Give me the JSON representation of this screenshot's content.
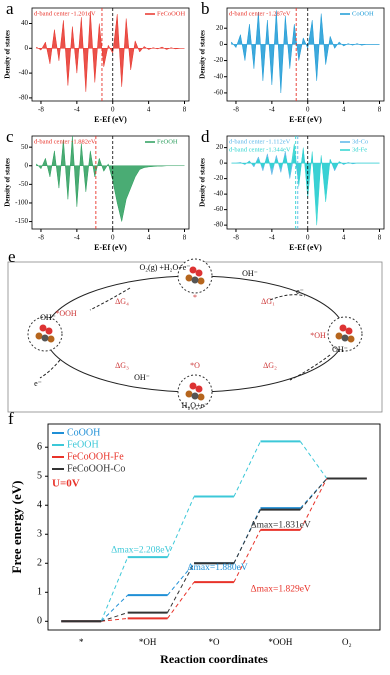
{
  "chart_data": [
    {
      "type": "dos",
      "panel": "a",
      "xlabel": "E-Ef (eV)",
      "ylabel": "Density of states",
      "xlim": [
        -9,
        8.5
      ],
      "xticks": [
        -8,
        -4,
        0,
        4,
        8
      ],
      "ylim": [
        -85,
        65
      ],
      "yticks": [
        -80,
        -40,
        0,
        40
      ],
      "x": [
        -8.5,
        -8,
        -7.5,
        -7,
        -6.5,
        -6,
        -5.5,
        -5,
        -4.5,
        -4,
        -3.5,
        -3,
        -2.5,
        -2,
        -1.5,
        -1,
        -0.5,
        0,
        0.5,
        1,
        1.5,
        2,
        2.5,
        3,
        3.5,
        4,
        4.5,
        5,
        5.5,
        6,
        6.5,
        7,
        7.5,
        8
      ],
      "series": [
        {
          "name": "FeCoOOH",
          "color": "#e8332a",
          "values": [
            2,
            -3,
            10,
            -25,
            30,
            -20,
            45,
            -60,
            35,
            -40,
            50,
            -70,
            60,
            -55,
            40,
            -30,
            5,
            -8,
            55,
            -62,
            48,
            -35,
            12,
            -6,
            3,
            -2,
            1,
            -1,
            2,
            -2,
            1,
            -1,
            0,
            0
          ]
        }
      ],
      "dband": [
        {
          "value": -1.201,
          "label": "d-band center -1.201eV",
          "color": "#e8332a"
        }
      ]
    },
    {
      "type": "dos",
      "panel": "b",
      "xlabel": "E-Ef (eV)",
      "ylabel": "Density of states",
      "xlim": [
        -9,
        8.5
      ],
      "xticks": [
        -8,
        -4,
        0,
        4,
        8
      ],
      "ylim": [
        -70,
        45
      ],
      "yticks": [
        -60,
        -40,
        -20,
        0,
        20
      ],
      "x": [
        -8.5,
        -8,
        -7.5,
        -7,
        -6.5,
        -6,
        -5.5,
        -5,
        -4.5,
        -4,
        -3.5,
        -3,
        -2.5,
        -2,
        -1.5,
        -1,
        -0.5,
        0,
        0.5,
        1,
        1.5,
        2,
        2.5,
        3,
        3.5,
        4,
        4.5,
        5,
        5.5,
        6,
        6.5,
        7,
        7.5,
        8
      ],
      "series": [
        {
          "name": "CoOOH",
          "color": "#1b9ad6",
          "values": [
            3,
            -4,
            12,
            -20,
            25,
            -30,
            40,
            -45,
            30,
            -50,
            42,
            -60,
            35,
            -30,
            25,
            -20,
            8,
            -5,
            30,
            -45,
            38,
            -25,
            10,
            -5,
            3,
            -2,
            1,
            -1,
            1,
            -1,
            0,
            0,
            0,
            0
          ]
        }
      ],
      "dband": [
        {
          "value": -1.287,
          "label": "d-band center -1.287eV",
          "color": "#e8332a"
        }
      ]
    },
    {
      "type": "dos",
      "panel": "c",
      "xlabel": "E-Ef (eV)",
      "ylabel": "Density of states",
      "xlim": [
        -9,
        8.5
      ],
      "xticks": [
        -8,
        -4,
        0,
        4,
        8
      ],
      "ylim": [
        -170,
        80
      ],
      "yticks": [
        -150,
        -100,
        -50,
        0,
        50
      ],
      "x": [
        -8.5,
        -8,
        -7.5,
        -7,
        -6.5,
        -6,
        -5.5,
        -5,
        -4.5,
        -4,
        -3.5,
        -3,
        -2.5,
        -2,
        -1.5,
        -1,
        -0.5,
        0,
        0.5,
        1,
        1.5,
        2,
        2.5,
        3,
        3.5,
        4,
        4.5,
        5,
        5.5,
        6,
        6.5,
        7,
        7.5,
        8
      ],
      "series": [
        {
          "name": "FeOOH",
          "color": "#2a9d5c",
          "values": [
            5,
            -8,
            20,
            -30,
            40,
            -60,
            70,
            -90,
            80,
            -110,
            60,
            -70,
            40,
            -30,
            20,
            -15,
            5,
            -40,
            -100,
            -150,
            -90,
            -60,
            -30,
            -10,
            -5,
            -3,
            -2,
            -1,
            -1,
            0,
            0,
            0,
            0,
            0
          ]
        }
      ],
      "dband": [
        {
          "value": -1.882,
          "label": "d-band center -1.882eV",
          "color": "#e8332a"
        }
      ]
    },
    {
      "type": "dos",
      "panel": "d",
      "xlabel": "E-Ef (eV)",
      "ylabel": "Density of states",
      "xlim": [
        -9,
        8.5
      ],
      "xticks": [
        -8,
        -4,
        0,
        4,
        8
      ],
      "ylim": [
        -85,
        35
      ],
      "yticks": [
        -80,
        -60,
        -40,
        -20,
        0,
        20
      ],
      "x": [
        -8.5,
        -8,
        -7.5,
        -7,
        -6.5,
        -6,
        -5.5,
        -5,
        -4.5,
        -4,
        -3.5,
        -3,
        -2.5,
        -2,
        -1.5,
        -1,
        -0.5,
        0,
        0.5,
        1,
        1.5,
        2,
        2.5,
        3,
        3.5,
        4,
        4.5,
        5,
        5.5,
        6,
        6.5,
        7,
        7.5,
        8
      ],
      "series": [
        {
          "name": "3d-Co",
          "color": "#5bb6e8",
          "values": [
            0,
            0,
            1,
            -2,
            3,
            -5,
            8,
            -10,
            12,
            -15,
            10,
            -12,
            15,
            -20,
            12,
            -25,
            18,
            -30,
            10,
            -60,
            8,
            -40,
            5,
            -10,
            2,
            -2,
            1,
            -1,
            0,
            0,
            0,
            0,
            0,
            0
          ]
        },
        {
          "name": "3d-Fe",
          "color": "#2fd4d0",
          "values": [
            0,
            0,
            0,
            -1,
            2,
            -3,
            5,
            -6,
            8,
            -8,
            6,
            -7,
            10,
            -15,
            25,
            -30,
            20,
            -45,
            15,
            -80,
            10,
            -50,
            5,
            -8,
            2,
            -1,
            0,
            0,
            0,
            0,
            0,
            0,
            0,
            0
          ]
        }
      ],
      "dband": [
        {
          "value": -1.112,
          "label": "d-band center -1.112eV",
          "color": "#5bb6e8"
        },
        {
          "value": -1.344,
          "label": "d-band center -1.344eV",
          "color": "#2fd4d0"
        }
      ]
    },
    {
      "type": "step",
      "panel": "f",
      "xlabel": "Reaction coordinates",
      "ylabel": "Free energy (eV)",
      "categories": [
        "*",
        "*OH",
        "*O",
        "*OOH",
        "O₂"
      ],
      "ylim": [
        -0.3,
        6.8
      ],
      "yticks": [
        0,
        1,
        2,
        3,
        4,
        5,
        6
      ],
      "series": [
        {
          "name": "CoOOH",
          "color": "#1f8fd6",
          "values": [
            0,
            0.9,
            2.0,
            3.9,
            4.92
          ]
        },
        {
          "name": "FeOOH",
          "color": "#3cc8d8",
          "values": [
            0,
            2.21,
            4.3,
            6.2,
            4.92
          ]
        },
        {
          "name": "FeCoOOH-Fe",
          "color": "#e8332a",
          "values": [
            0,
            0.1,
            1.35,
            3.15,
            4.92
          ]
        },
        {
          "name": "FeCoOOH-Co",
          "color": "#333333",
          "values": [
            0,
            0.3,
            2.0,
            3.85,
            4.92
          ]
        }
      ],
      "annotations": [
        {
          "text": "U=0V",
          "color": "#e8332a"
        },
        {
          "text": "Δmax=2.208eV",
          "color": "#3cc8d8"
        },
        {
          "text": "Δmax=1.880eV",
          "color": "#1f8fd6"
        },
        {
          "text": "Δmax=1.831eV",
          "color": "#333333"
        },
        {
          "text": "Δmax=1.829eV",
          "color": "#e8332a"
        }
      ]
    }
  ],
  "diagram": {
    "panel": "e",
    "labels": [
      "O₂(g) +H₂O+e⁻",
      "OH⁻",
      "OH⁻",
      "e⁻",
      "ΔG₄",
      "ΔG₁",
      "*",
      "*OOH",
      "*OH",
      "*O",
      "ΔG₃",
      "ΔG₂",
      "e⁻",
      "OH⁻",
      "OH⁻",
      "H₂O+e⁻"
    ]
  }
}
